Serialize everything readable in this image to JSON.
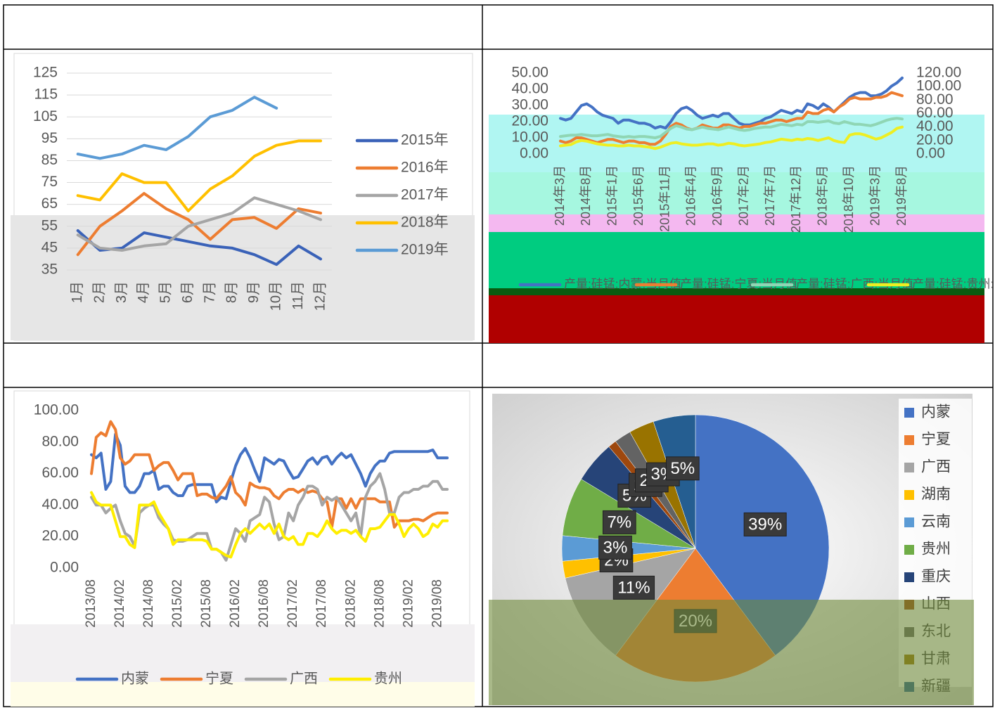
{
  "chart_data": [
    {
      "type": "line",
      "categories": [
        "1月",
        "2月",
        "3月",
        "4月",
        "5月",
        "6月",
        "7月",
        "8月",
        "9月",
        "10月",
        "11月",
        "12月"
      ],
      "ylim": [
        35,
        125
      ],
      "yticks": [
        35,
        45,
        55,
        65,
        75,
        85,
        95,
        105,
        115,
        125
      ],
      "grid": true,
      "legend": "right",
      "series": [
        {
          "name": "2015年",
          "color": "#3a62b8",
          "values": [
            53,
            44,
            45,
            52,
            50,
            48,
            46,
            45,
            42,
            37.5,
            46,
            40
          ]
        },
        {
          "name": "2016年",
          "color": "#ed7d31",
          "values": [
            42,
            55,
            62,
            70,
            63,
            58,
            49,
            58,
            59,
            54,
            63,
            61
          ]
        },
        {
          "name": "2017年",
          "color": "#a5a5a5",
          "values": [
            51,
            45,
            44,
            46,
            47,
            55,
            58,
            61,
            68,
            65,
            62,
            58
          ]
        },
        {
          "name": "2018年",
          "color": "#ffc000",
          "values": [
            69,
            67,
            79,
            75,
            75,
            62,
            72,
            78,
            87,
            92,
            94,
            94
          ]
        },
        {
          "name": "2019年",
          "color": "#5b9bd5",
          "values": [
            88,
            86,
            88,
            92,
            90,
            96,
            105,
            108,
            114,
            109,
            null,
            null
          ]
        }
      ]
    },
    {
      "type": "line",
      "categories": [
        "2014年3月",
        null,
        null,
        null,
        null,
        "2014年8月",
        null,
        null,
        null,
        null,
        "2015年1月",
        null,
        null,
        null,
        null,
        "2015年6月",
        null,
        null,
        null,
        null,
        "2015年11月",
        null,
        null,
        null,
        null,
        "2016年4月",
        null,
        null,
        null,
        null,
        "2016年9月",
        null,
        null,
        null,
        null,
        "2017年2月",
        null,
        null,
        null,
        null,
        "2017年7月",
        null,
        null,
        null,
        null,
        "2017年12月",
        null,
        null,
        null,
        null,
        "2018年5月",
        null,
        null,
        null,
        null,
        "2018年10月",
        null,
        null,
        null,
        null,
        "2019年3月",
        null,
        null,
        null,
        null,
        "2019年8月"
      ],
      "ylim": [
        0,
        50
      ],
      "yticks": [
        {
          "value": 0,
          "label": "0.00"
        },
        {
          "value": 10,
          "label": "10.00"
        },
        {
          "value": 20,
          "label": "20.00"
        },
        {
          "value": 30,
          "label": "30.00"
        },
        {
          "value": 40,
          "label": "40.00"
        },
        {
          "value": 50,
          "label": "50.00"
        }
      ],
      "y2lim": [
        0,
        120
      ],
      "y2ticks": [
        {
          "value": 0,
          "label": "0.00"
        },
        {
          "value": 20,
          "label": "20.00"
        },
        {
          "value": 40,
          "label": "40.00"
        },
        {
          "value": 60,
          "label": "60.00"
        },
        {
          "value": 80,
          "label": "80.00"
        },
        {
          "value": 100,
          "label": "100.00"
        },
        {
          "value": 120,
          "label": "120.00"
        }
      ],
      "grid": false,
      "legend": "bottom",
      "series": [
        {
          "name": "产量:硅锰:内蒙:当月值",
          "color": "#4472c4",
          "values": [
            22,
            21,
            22,
            26,
            30,
            31,
            29,
            26,
            24,
            23,
            22,
            19,
            21,
            21,
            20,
            19,
            19,
            18,
            16,
            17,
            16,
            20,
            25,
            28,
            29,
            27,
            24,
            22,
            23,
            24,
            23,
            25,
            25,
            22,
            19,
            18,
            18,
            19,
            20,
            22,
            23,
            25,
            27,
            26,
            25,
            27,
            26,
            31,
            30,
            28,
            31,
            29,
            26,
            29,
            32,
            35,
            37,
            38,
            38,
            36,
            36,
            37,
            39,
            42,
            44,
            47
          ]
        },
        {
          "name": "产量:硅锰:宁夏:当月值",
          "color": "#ed7d31",
          "values": [
            8,
            7,
            8,
            10,
            10,
            9,
            8,
            7,
            8,
            9,
            9,
            8,
            7,
            8,
            8,
            7,
            7,
            6,
            6,
            8,
            12,
            17,
            19,
            18,
            16,
            15,
            16,
            18,
            17,
            16,
            16,
            18,
            18,
            17,
            16,
            17,
            17,
            18,
            19,
            19,
            20,
            21,
            21,
            20,
            21,
            22,
            22,
            26,
            25,
            25,
            27,
            28,
            26,
            29,
            31,
            34,
            35,
            34,
            34,
            34,
            35,
            35,
            36,
            38,
            37,
            36
          ]
        },
        {
          "name": "产量:硅锰:广西:当月值",
          "color": "#8fd6b4",
          "axis": "y2",
          "values": [
            26,
            27,
            28,
            28,
            29,
            28,
            27,
            27,
            28,
            29,
            27,
            26,
            25,
            26,
            25,
            26,
            26,
            25,
            24,
            26,
            32,
            38,
            42,
            40,
            37,
            36,
            38,
            40,
            38,
            37,
            36,
            38,
            40,
            38,
            36,
            35,
            36,
            38,
            39,
            40,
            40,
            42,
            44,
            43,
            42,
            44,
            43,
            48,
            48,
            47,
            48,
            49,
            46,
            45,
            48,
            46,
            44,
            44,
            43,
            42,
            44,
            47,
            50,
            52,
            53,
            52
          ]
        },
        {
          "name": "产量:硅锰:贵州:当月值",
          "color": "#eeee22",
          "axis": "y2",
          "values": [
            12,
            13,
            14,
            18,
            20,
            19,
            17,
            15,
            14,
            13,
            13,
            12,
            12,
            13,
            12,
            12,
            11,
            10,
            8,
            10,
            13,
            16,
            17,
            15,
            14,
            13,
            13,
            14,
            15,
            15,
            13,
            14,
            16,
            15,
            13,
            12,
            13,
            14,
            15,
            17,
            18,
            20,
            22,
            21,
            20,
            22,
            21,
            23,
            22,
            20,
            22,
            24,
            20,
            18,
            17,
            28,
            30,
            30,
            28,
            25,
            22,
            24,
            28,
            32,
            38,
            40
          ]
        }
      ]
    },
    {
      "type": "line",
      "categories": [
        "2013/08",
        null,
        null,
        null,
        null,
        null,
        "2014/02",
        null,
        null,
        null,
        null,
        null,
        "2014/08",
        null,
        null,
        null,
        null,
        null,
        "2015/02",
        null,
        null,
        null,
        null,
        null,
        "2015/08",
        null,
        null,
        null,
        null,
        null,
        "2016/02",
        null,
        null,
        null,
        null,
        null,
        "2016/08",
        null,
        null,
        null,
        null,
        null,
        "2017/02",
        null,
        null,
        null,
        null,
        null,
        "2017/08",
        null,
        null,
        null,
        null,
        null,
        "2018/02",
        null,
        null,
        null,
        null,
        null,
        "2018/08",
        null,
        null,
        null,
        null,
        null,
        "2019/02",
        null,
        null,
        null,
        null,
        null,
        "2019/08",
        null,
        null
      ],
      "ylim": [
        0,
        100
      ],
      "yticks": [
        {
          "value": 0,
          "label": "0.00"
        },
        {
          "value": 20,
          "label": "20.00"
        },
        {
          "value": 40,
          "label": "40.00"
        },
        {
          "value": 60,
          "label": "60.00"
        },
        {
          "value": 80,
          "label": "80.00"
        },
        {
          "value": 100,
          "label": "100.00"
        }
      ],
      "grid": false,
      "legend": "bottom",
      "series": [
        {
          "name": "内蒙",
          "color": "#4472c4",
          "values": [
            72,
            70,
            73,
            50,
            55,
            85,
            78,
            52,
            48,
            48,
            52,
            60,
            60,
            62,
            50,
            52,
            52,
            48,
            46,
            46,
            52,
            53,
            53,
            53,
            53,
            53,
            42,
            45,
            44,
            55,
            65,
            72,
            76,
            70,
            62,
            55,
            70,
            68,
            66,
            69,
            68,
            62,
            57,
            58,
            63,
            68,
            70,
            66,
            70,
            71,
            66,
            70,
            73,
            70,
            72,
            66,
            60,
            52,
            60,
            65,
            68,
            68,
            73,
            74,
            74,
            74,
            74,
            74,
            74,
            74,
            74,
            75,
            70,
            70,
            70
          ]
        },
        {
          "name": "宁夏",
          "color": "#ed7d31",
          "values": [
            60,
            83,
            86,
            84,
            93,
            88,
            70,
            66,
            68,
            72,
            72,
            72,
            72,
            62,
            65,
            67,
            67,
            62,
            56,
            60,
            60,
            60,
            46,
            47,
            47,
            45,
            44,
            48,
            52,
            58,
            48,
            45,
            40,
            54,
            52,
            51,
            51,
            50,
            46,
            44,
            48,
            50,
            50,
            48,
            50,
            48,
            49,
            48,
            44,
            42,
            26,
            44,
            44,
            38,
            44,
            38,
            44,
            44,
            44,
            44,
            42,
            42,
            42,
            26,
            30,
            30,
            30,
            31,
            31,
            30,
            32,
            34,
            35,
            35,
            35
          ]
        },
        {
          "name": "广西",
          "color": "#a5a5a5",
          "values": [
            45,
            40,
            40,
            35,
            38,
            40,
            30,
            22,
            20,
            14,
            35,
            38,
            40,
            40,
            32,
            28,
            25,
            18,
            17,
            17,
            18,
            20,
            22,
            22,
            22,
            12,
            12,
            10,
            5,
            15,
            25,
            22,
            17,
            30,
            32,
            34,
            45,
            42,
            28,
            18,
            20,
            35,
            30,
            40,
            45,
            52,
            52,
            50,
            40,
            45,
            43,
            45,
            40,
            35,
            30,
            35,
            20,
            45,
            52,
            55,
            60,
            50,
            35,
            35,
            45,
            48,
            48,
            50,
            50,
            52,
            52,
            55,
            55,
            50,
            50
          ]
        },
        {
          "name": "贵州",
          "color": "#ffee00",
          "values": [
            48,
            42,
            40,
            40,
            40,
            30,
            20,
            20,
            15,
            13,
            40,
            40,
            40,
            42,
            35,
            30,
            25,
            15,
            18,
            18,
            18,
            18,
            18,
            18,
            17,
            12,
            12,
            10,
            8,
            7,
            15,
            22,
            25,
            22,
            25,
            28,
            25,
            28,
            22,
            28,
            20,
            18,
            20,
            15,
            15,
            22,
            22,
            20,
            24,
            30,
            25,
            22,
            24,
            24,
            22,
            24,
            20,
            17,
            25,
            25,
            26,
            30,
            34,
            34,
            28,
            20,
            25,
            28,
            25,
            20,
            22,
            28,
            26,
            30,
            30
          ]
        }
      ]
    },
    {
      "type": "pie",
      "legend": "right",
      "categories": [
        "内蒙",
        "宁夏",
        "广西",
        "湖南",
        "云南",
        "贵州",
        "重庆",
        "山西",
        "东北",
        "甘肃",
        "新疆"
      ],
      "values": [
        39,
        20,
        11,
        2,
        3,
        7,
        5,
        1,
        2,
        3,
        5
      ],
      "value_labels": [
        "39%",
        "20%",
        "11%",
        "2%",
        "3%",
        "7%",
        "5%",
        "1%",
        "2%",
        "3%",
        "5%"
      ],
      "colors": [
        "#4472c4",
        "#ed7d31",
        "#a5a5a5",
        "#ffc000",
        "#5b9bd5",
        "#70ad47",
        "#264478",
        "#9e480e",
        "#636363",
        "#997300",
        "#255e91"
      ]
    }
  ]
}
